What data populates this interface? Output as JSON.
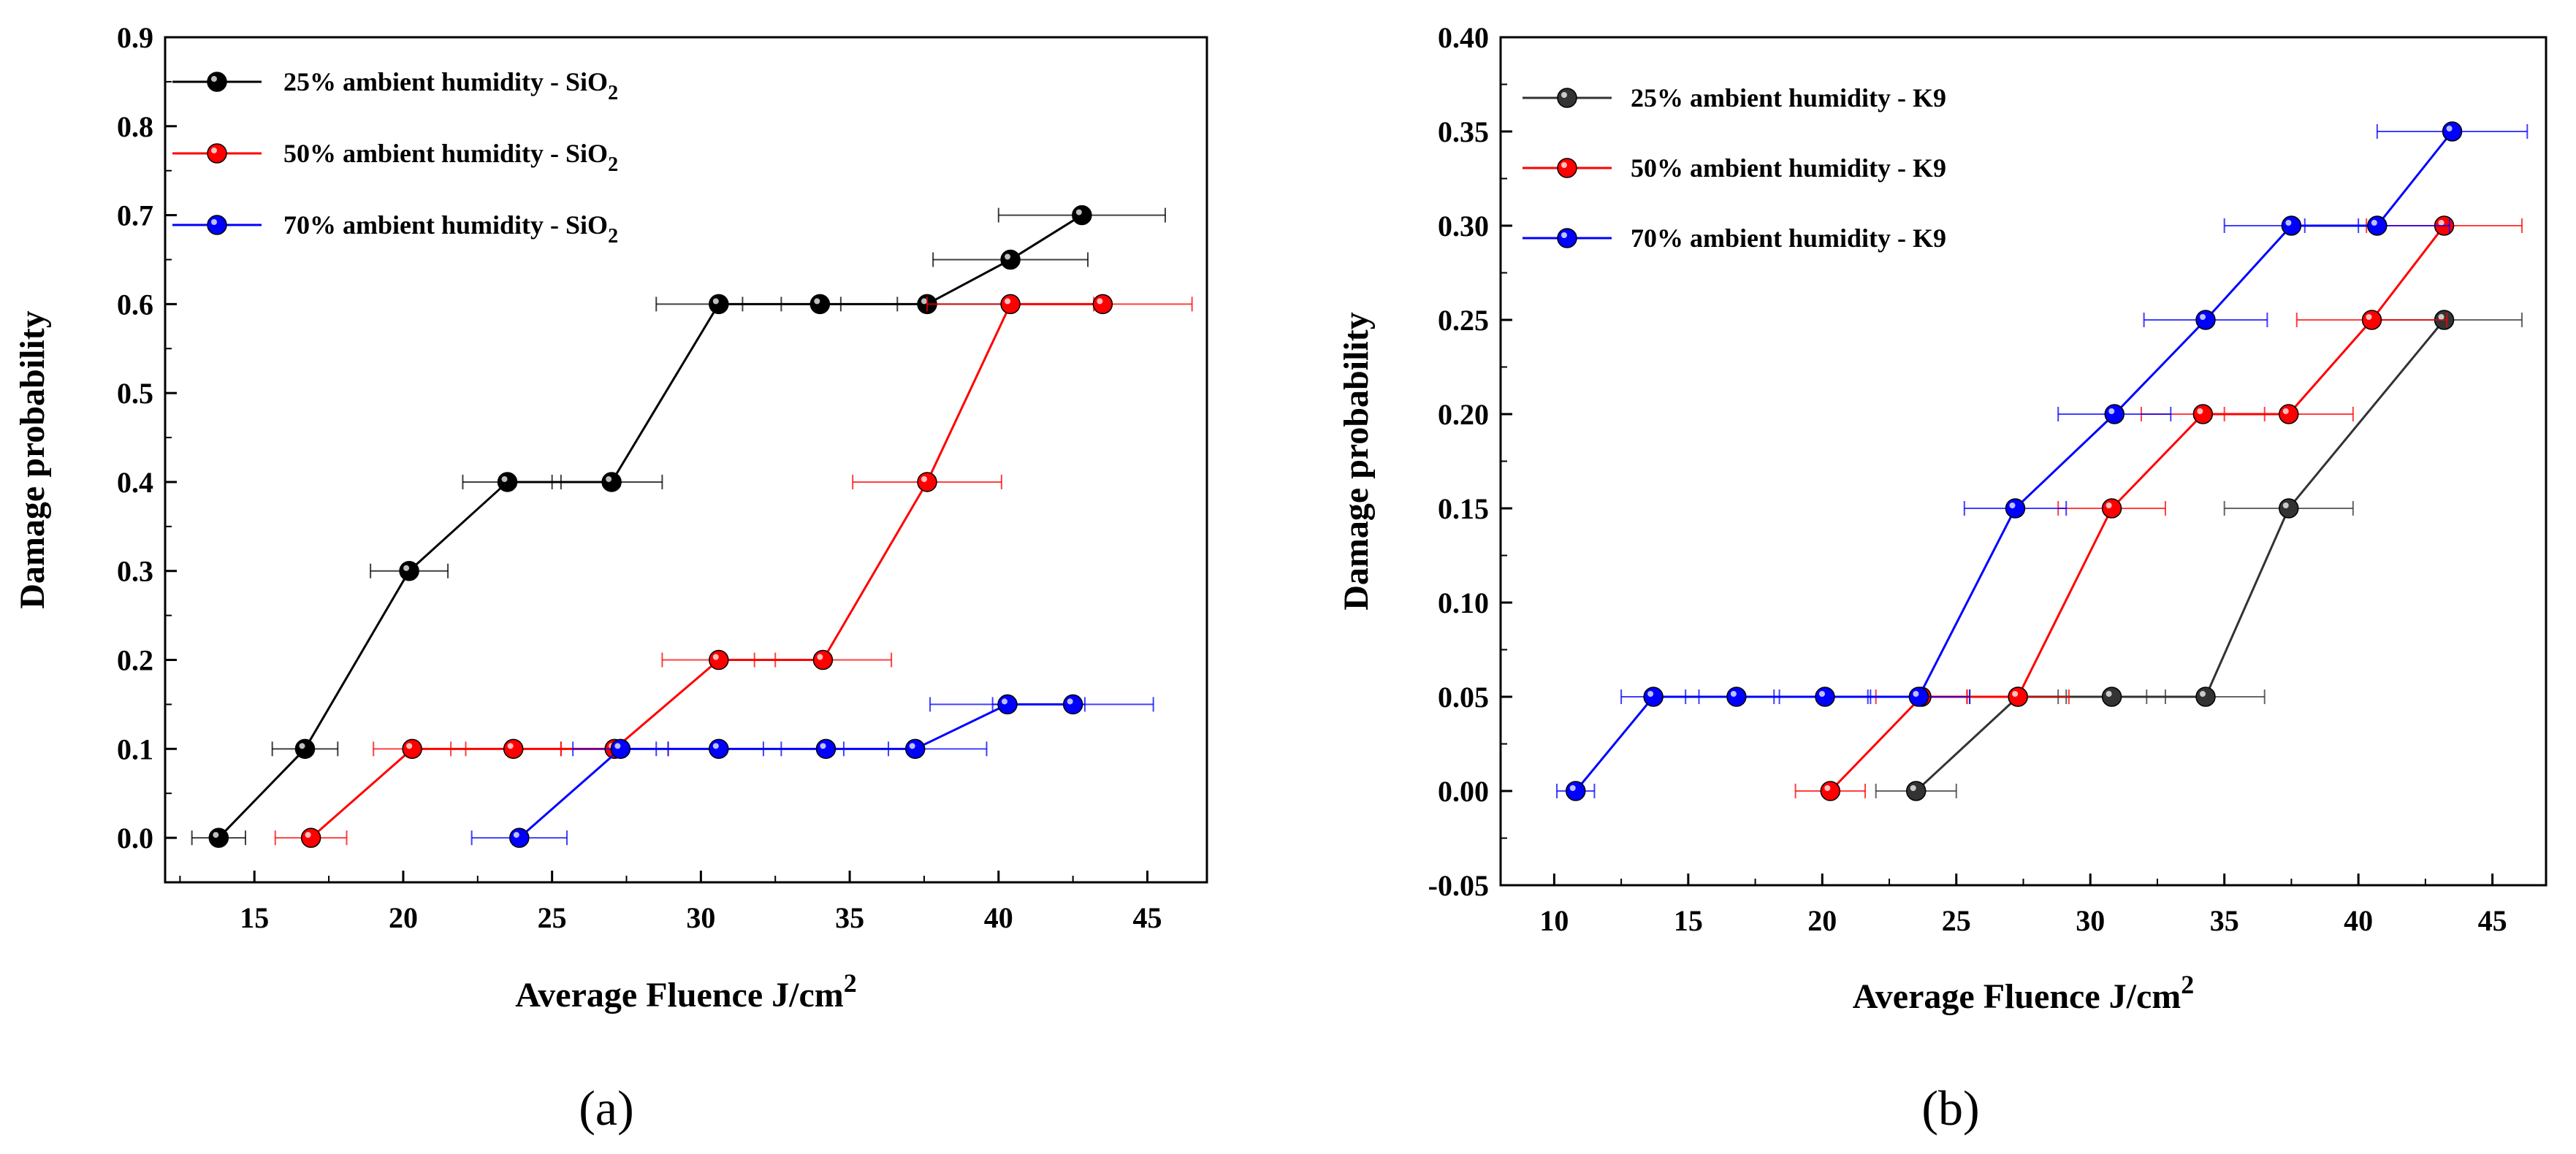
{
  "colors": {
    "black": "#000000",
    "red": "#ff0000",
    "blue": "#0000ff",
    "dark": "#333333"
  },
  "chart_data": [
    {
      "id": "a",
      "type": "line",
      "panel_label": "(a)",
      "title": "",
      "xlabel_main": "Average Fluence J/cm",
      "xlabel_sup": "2",
      "ylabel": "Damage probability",
      "xlim": [
        12,
        47
      ],
      "ylim": [
        -0.05,
        0.9
      ],
      "xticks": [
        15,
        20,
        25,
        30,
        35,
        40,
        45
      ],
      "yticks": [
        0.0,
        0.1,
        0.2,
        0.3,
        0.4,
        0.5,
        0.6,
        0.7,
        0.8,
        0.9
      ],
      "ytick_decimals": 1,
      "legend_position": "top-left",
      "series": [
        {
          "name": "25% ambient humidity - SiO2",
          "label_main": "25% ambient humidity - SiO",
          "label_sub": "2",
          "color": "#000000",
          "x": [
            13.8,
            16.7,
            20.2,
            23.5,
            27.0,
            30.6,
            34.0,
            37.6,
            40.4,
            42.8
          ],
          "y": [
            0.0,
            0.1,
            0.3,
            0.4,
            0.4,
            0.6,
            0.6,
            0.6,
            0.65,
            0.7
          ],
          "xerr": [
            0.9,
            1.1,
            1.3,
            1.5,
            1.7,
            2.1,
            2.6,
            2.9,
            2.6,
            2.8
          ]
        },
        {
          "name": "50% ambient humidity - SiO2",
          "label_main": "50% ambient humidity - SiO",
          "label_sub": "2",
          "color": "#ff0000",
          "x": [
            16.9,
            20.3,
            23.7,
            27.1,
            30.6,
            34.1,
            37.6,
            40.4,
            43.5
          ],
          "y": [
            0.0,
            0.1,
            0.1,
            0.1,
            0.2,
            0.2,
            0.4,
            0.6,
            0.6
          ],
          "xerr": [
            1.2,
            1.3,
            1.6,
            1.8,
            1.9,
            2.3,
            2.5,
            2.8,
            3.0
          ]
        },
        {
          "name": "70% ambient humidity - SiO2",
          "label_main": "70% ambient humidity - SiO",
          "label_sub": "2",
          "color": "#0000ff",
          "x": [
            23.9,
            27.3,
            30.6,
            34.2,
            37.2,
            40.3,
            42.5
          ],
          "y": [
            0.0,
            0.1,
            0.1,
            0.1,
            0.1,
            0.15,
            0.15
          ],
          "xerr": [
            1.6,
            1.6,
            2.1,
            2.1,
            2.4,
            2.6,
            2.7
          ]
        }
      ]
    },
    {
      "id": "b",
      "type": "line",
      "panel_label": "(b)",
      "title": "",
      "xlabel_main": "Average Fluence J/cm",
      "xlabel_sup": "2",
      "ylabel": "Damage probability",
      "xlim": [
        8,
        47
      ],
      "ylim": [
        -0.05,
        0.4
      ],
      "xticks": [
        10,
        15,
        20,
        25,
        30,
        35,
        40,
        45
      ],
      "yticks": [
        -0.05,
        0.0,
        0.05,
        0.1,
        0.15,
        0.2,
        0.25,
        0.3,
        0.35,
        0.4
      ],
      "ytick_decimals": 2,
      "legend_position": "top-left",
      "series": [
        {
          "name": "25% ambient humidity - K9",
          "label_main": "25% ambient humidity - K9",
          "label_sub": "",
          "color": "#333333",
          "x": [
            23.5,
            27.3,
            30.8,
            34.3,
            37.4,
            43.2
          ],
          "y": [
            0.0,
            0.05,
            0.05,
            0.05,
            0.15,
            0.25
          ],
          "xerr": [
            1.5,
            1.8,
            2.0,
            2.2,
            2.4,
            2.9
          ]
        },
        {
          "name": "50% ambient humidity - K9",
          "label_main": "50% ambient humidity - K9",
          "label_sub": "",
          "color": "#ff0000",
          "x": [
            20.3,
            23.7,
            27.3,
            30.8,
            34.2,
            37.4,
            40.5,
            43.2
          ],
          "y": [
            0.0,
            0.05,
            0.05,
            0.15,
            0.2,
            0.2,
            0.25,
            0.3
          ],
          "xerr": [
            1.3,
            1.7,
            1.9,
            2.0,
            2.3,
            2.4,
            2.8,
            2.9
          ]
        },
        {
          "name": "70% ambient humidity - K9",
          "label_main": "70% ambient humidity - K9",
          "label_sub": "",
          "color": "#0000ff",
          "x": [
            10.8,
            13.7,
            16.8,
            20.1,
            23.6,
            27.2,
            30.9,
            34.3,
            37.5,
            40.7,
            43.5
          ],
          "y": [
            0.0,
            0.05,
            0.05,
            0.05,
            0.05,
            0.15,
            0.2,
            0.25,
            0.3,
            0.3,
            0.35
          ],
          "xerr": [
            0.7,
            1.2,
            1.4,
            1.7,
            1.9,
            1.9,
            2.1,
            2.3,
            2.5,
            2.7,
            2.8
          ]
        }
      ]
    }
  ]
}
